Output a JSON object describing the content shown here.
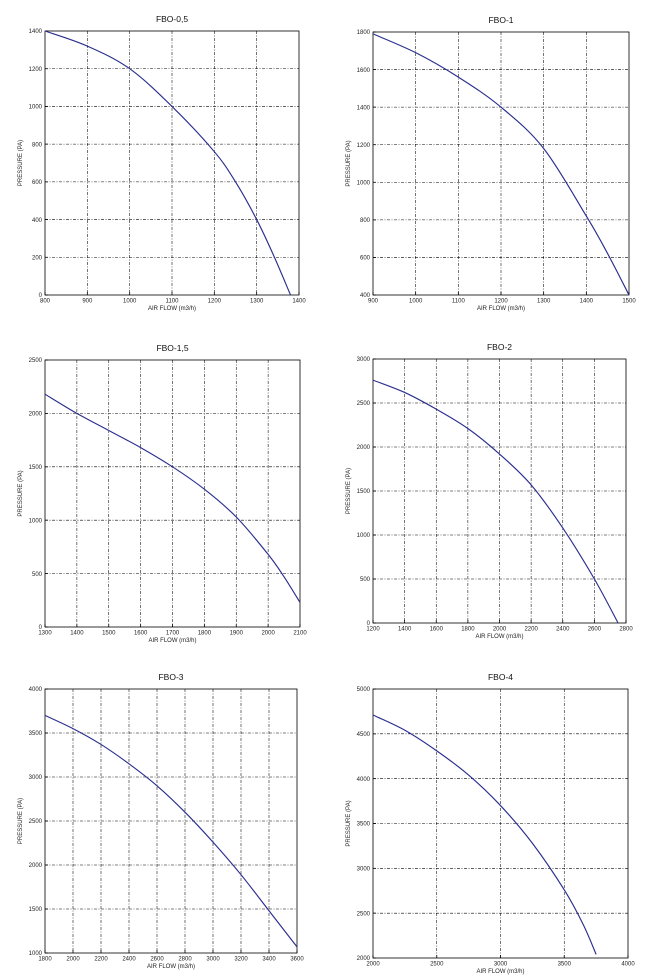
{
  "page": {
    "background": "#ffffff"
  },
  "chart_data": [
    {
      "type": "line",
      "title": "FBO-0,5",
      "xlabel": "AIR FLOW (m3/h)",
      "ylabel": "PRESSURE (PA)",
      "xlim": [
        800,
        1400
      ],
      "ylim": [
        0,
        1400
      ],
      "x_ticks": [
        "800",
        "900",
        "1000",
        "1100",
        "1200",
        "1300",
        "1400"
      ],
      "y_ticks": [
        "0",
        "200",
        "400",
        "600",
        "800",
        "1000",
        "1200",
        "1400"
      ],
      "grid": true,
      "line_color": "#2b2f8e",
      "series": [
        {
          "x": [
            800,
            900,
            1000,
            1100,
            1200,
            1250,
            1300,
            1340,
            1380
          ],
          "y": [
            1400,
            1320,
            1200,
            1000,
            760,
            600,
            400,
            210,
            0
          ]
        }
      ]
    },
    {
      "type": "line",
      "title": "FBO-1",
      "xlabel": "AIR FLOW (m3/h)",
      "ylabel": "PRESSURE (PA)",
      "xlim": [
        900,
        1500
      ],
      "ylim": [
        400,
        1800
      ],
      "x_ticks": [
        "900",
        "1000",
        "1100",
        "1200",
        "1300",
        "1400",
        "1500"
      ],
      "y_ticks": [
        "400",
        "600",
        "800",
        "1000",
        "1200",
        "1400",
        "1600",
        "1800"
      ],
      "grid": true,
      "line_color": "#2b2f8e",
      "series": [
        {
          "x": [
            900,
            1000,
            1100,
            1200,
            1300,
            1400,
            1450,
            1500
          ],
          "y": [
            1790,
            1690,
            1560,
            1400,
            1180,
            820,
            620,
            400
          ]
        }
      ]
    },
    {
      "type": "line",
      "title": "FBO-1,5",
      "xlabel": "AIR FLOW (m3/h)",
      "ylabel": "PRESSURE (PA)",
      "xlim": [
        1300,
        2100
      ],
      "ylim": [
        0,
        2500
      ],
      "x_ticks": [
        "1300",
        "1400",
        "1500",
        "1600",
        "1700",
        "1800",
        "1900",
        "2000",
        "2100"
      ],
      "y_ticks": [
        "0",
        "500",
        "1000",
        "1500",
        "2000",
        "2500"
      ],
      "grid": true,
      "line_color": "#2b2f8e",
      "series": [
        {
          "x": [
            1300,
            1400,
            1500,
            1600,
            1700,
            1800,
            1900,
            2000,
            2050,
            2100
          ],
          "y": [
            2180,
            2000,
            1840,
            1680,
            1500,
            1290,
            1030,
            680,
            470,
            230
          ]
        }
      ]
    },
    {
      "type": "line",
      "title": "FBO-2",
      "xlabel": "AIR FLOW (m3/h)",
      "ylabel": "PRESSURE (PA)",
      "xlim": [
        1200,
        2800
      ],
      "ylim": [
        0,
        3000
      ],
      "x_ticks": [
        "1200",
        "1400",
        "1600",
        "1800",
        "2000",
        "2200",
        "2400",
        "2600",
        "2800"
      ],
      "y_ticks": [
        "0",
        "500",
        "1000",
        "1500",
        "2000",
        "2500",
        "3000"
      ],
      "grid": true,
      "line_color": "#2b2f8e",
      "series": [
        {
          "x": [
            1200,
            1400,
            1600,
            1800,
            2000,
            2200,
            2400,
            2600,
            2750
          ],
          "y": [
            2760,
            2620,
            2430,
            2210,
            1920,
            1570,
            1080,
            500,
            0
          ]
        }
      ]
    },
    {
      "type": "line",
      "title": "FBO-3",
      "xlabel": "AIR FLOW (m3/h)",
      "ylabel": "PRESSURE (PA)",
      "xlim": [
        1800,
        3600
      ],
      "ylim": [
        1000,
        4000
      ],
      "x_ticks": [
        "1800",
        "2000",
        "2200",
        "2400",
        "2600",
        "2800",
        "3000",
        "3200",
        "3400",
        "3600"
      ],
      "y_ticks": [
        "1000",
        "1500",
        "2000",
        "2500",
        "3000",
        "3500",
        "4000"
      ],
      "grid": true,
      "line_color": "#2b2f8e",
      "series": [
        {
          "x": [
            1800,
            2000,
            2200,
            2400,
            2600,
            2800,
            3000,
            3200,
            3400,
            3600
          ],
          "y": [
            3700,
            3550,
            3370,
            3150,
            2900,
            2600,
            2260,
            1890,
            1480,
            1070
          ]
        }
      ]
    },
    {
      "type": "line",
      "title": "FBO-4",
      "xlabel": "AIR FLOW (m3/h)",
      "ylabel": "PRESSURE (PA)",
      "xlim": [
        2000,
        4000
      ],
      "ylim": [
        2000,
        5000
      ],
      "x_ticks": [
        "2000",
        "2500",
        "3000",
        "3500",
        "4000"
      ],
      "y_ticks": [
        "2000",
        "2500",
        "3000",
        "3500",
        "4000",
        "4500",
        "5000"
      ],
      "grid": true,
      "line_color": "#2b2f8e",
      "series": [
        {
          "x": [
            2000,
            2250,
            2500,
            2750,
            3000,
            3250,
            3500,
            3650,
            3750
          ],
          "y": [
            4710,
            4540,
            4310,
            4040,
            3700,
            3280,
            2760,
            2370,
            2040
          ]
        }
      ]
    }
  ]
}
